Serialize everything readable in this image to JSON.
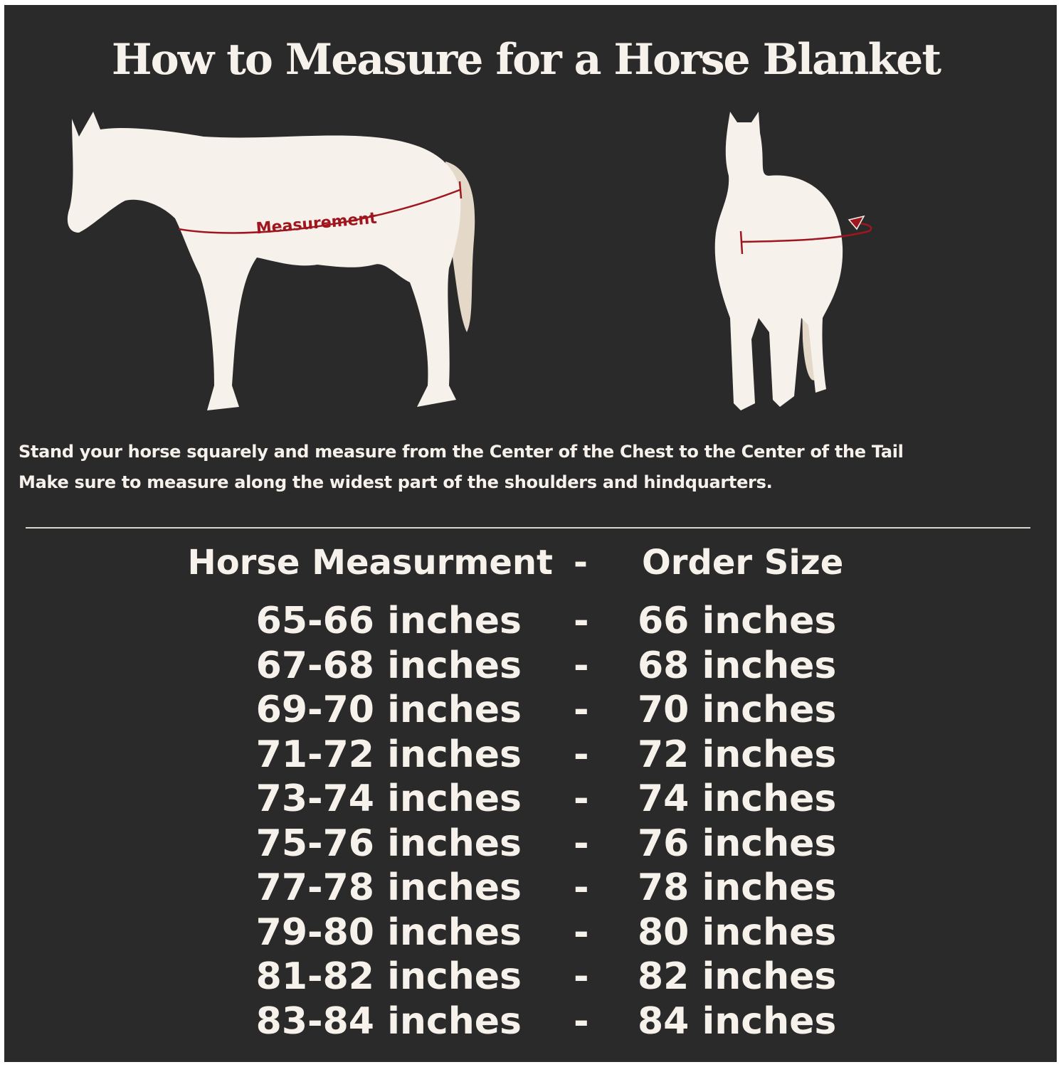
{
  "title": "How to Measure for a Horse Blanket",
  "side_view_label": "Measurement",
  "colors": {
    "background": "#2b2a2b",
    "horse": "#f6f1ea",
    "tail": "#e4d8c8",
    "measure_line": "#a0161e"
  },
  "instructions": [
    "Stand your horse squarely and measure from the Center of the Chest to the Center of the Tail",
    "Make sure to measure along the widest part of the shoulders and hindquarters."
  ],
  "table": {
    "header": {
      "left": "Horse Measurment",
      "separator": "-",
      "right": "Order Size"
    },
    "rows": [
      {
        "measurement": "65-66 inches",
        "sep": "-",
        "size": "66 inches"
      },
      {
        "measurement": "67-68 inches",
        "sep": "-",
        "size": "68 inches"
      },
      {
        "measurement": "69-70 inches",
        "sep": "-",
        "size": "70 inches"
      },
      {
        "measurement": "71-72 inches",
        "sep": "-",
        "size": "72 inches"
      },
      {
        "measurement": "73-74 inches",
        "sep": "-",
        "size": "74 inches"
      },
      {
        "measurement": "75-76 inches",
        "sep": "-",
        "size": "76 inches"
      },
      {
        "measurement": "77-78 inches",
        "sep": "-",
        "size": "78 inches"
      },
      {
        "measurement": "79-80 inches",
        "sep": "-",
        "size": "80 inches"
      },
      {
        "measurement": "81-82 inches",
        "sep": "-",
        "size": "82 inches"
      },
      {
        "measurement": "83-84 inches",
        "sep": "-",
        "size": "84 inches"
      }
    ]
  }
}
